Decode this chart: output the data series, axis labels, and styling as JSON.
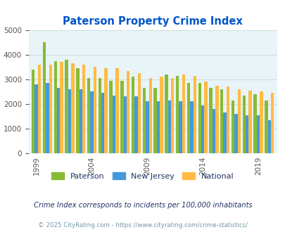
{
  "title": "Paterson Property Crime Index",
  "title_color": "#0055cc",
  "years": [
    1999,
    2000,
    2001,
    2002,
    2003,
    2004,
    2005,
    2006,
    2007,
    2008,
    2009,
    2010,
    2011,
    2012,
    2013,
    2014,
    2015,
    2016,
    2017,
    2018,
    2019,
    2020
  ],
  "paterson": [
    3400,
    4500,
    3750,
    3800,
    3450,
    3050,
    3050,
    2950,
    2950,
    3100,
    2650,
    2650,
    3200,
    3150,
    2850,
    2850,
    2650,
    2600,
    2150,
    2350,
    2400,
    2150
  ],
  "new_jersey": [
    2800,
    2850,
    2650,
    2600,
    2600,
    2500,
    2450,
    2350,
    2300,
    2300,
    2100,
    2100,
    2150,
    2100,
    2100,
    1950,
    1800,
    1650,
    1600,
    1550,
    1550,
    1350
  ],
  "national": [
    3600,
    3600,
    3700,
    3650,
    3600,
    3500,
    3450,
    3450,
    3350,
    3250,
    3050,
    3100,
    3050,
    3200,
    3150,
    2900,
    2750,
    2700,
    2600,
    2550,
    2500,
    2450
  ],
  "paterson_color": "#88bb33",
  "nj_color": "#4499dd",
  "national_color": "#ffbb44",
  "bg_color": "#e8f4f8",
  "ylim": [
    0,
    5000
  ],
  "yticks": [
    0,
    1000,
    2000,
    3000,
    4000,
    5000
  ],
  "xlabel_ticks": [
    1999,
    2004,
    2009,
    2014,
    2019
  ],
  "footnote": "Crime Index corresponds to incidents per 100,000 inhabitants",
  "copyright": "© 2025 CityRating.com - https://www.cityrating.com/crime-statistics/",
  "footnote_color": "#223366",
  "copyright_color": "#7799aa",
  "grid_color": "#ccdddd",
  "bar_width": 0.28
}
